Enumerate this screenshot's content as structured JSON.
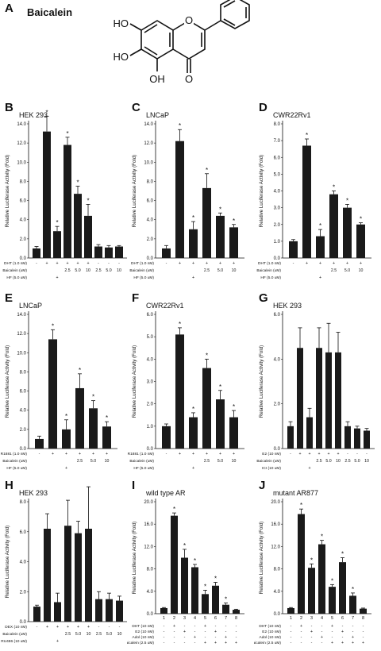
{
  "compound": {
    "panel": "A",
    "name": "Baicalein",
    "oh_labels": [
      "HO",
      "HO",
      "OH",
      "O",
      "O"
    ]
  },
  "chart_data": [
    {
      "panel": "B",
      "title": "HEK 293",
      "type": "bar",
      "ylabel": "Relative Luciferase Activity (Fold)",
      "ylim": [
        0,
        14
      ],
      "yticks": [
        "0.0",
        "2.0",
        "4.0",
        "6.0",
        "8.0",
        "10.0",
        "12.0",
        "14.0"
      ],
      "values": [
        1.0,
        13.2,
        2.8,
        11.8,
        6.7,
        4.4,
        1.2,
        1.1,
        1.2
      ],
      "errors": [
        0.2,
        1.6,
        0.5,
        0.8,
        0.8,
        1.2,
        0.2,
        0.2,
        0.1
      ],
      "stars": [
        false,
        true,
        true,
        true,
        true,
        true,
        false,
        false,
        false
      ],
      "row_labels": [
        "DHT (1.0 nM)",
        "Baicalein (uM)",
        "HF (5.0 uM)"
      ],
      "rows": [
        [
          "-",
          "+",
          "+",
          "+",
          "+",
          "+",
          "-",
          "-",
          "-"
        ],
        [
          "",
          "",
          "",
          "2.5",
          "5.0",
          "10",
          "2.5",
          "5.0",
          "10"
        ],
        [
          "",
          "",
          "+",
          "",
          "",
          "",
          "",
          "",
          ""
        ]
      ]
    },
    {
      "panel": "C",
      "title": "LNCaP",
      "type": "bar",
      "ylabel": "Relative Luciferase Activity (Fold)",
      "ylim": [
        0,
        14
      ],
      "yticks": [
        "0.0",
        "2.0",
        "4.0",
        "6.0",
        "8.0",
        "10.0",
        "12.0",
        "14.0"
      ],
      "values": [
        1.0,
        12.2,
        3.0,
        7.3,
        4.4,
        3.2
      ],
      "errors": [
        0.3,
        1.2,
        0.8,
        1.5,
        0.3,
        0.3
      ],
      "stars": [
        false,
        true,
        true,
        true,
        true,
        true
      ],
      "row_labels": [
        "DHT (1.0 nM)",
        "Baicalein (uM)",
        "HF (5.0 uM)"
      ],
      "rows": [
        [
          "-",
          "+",
          "+",
          "+",
          "+",
          "+"
        ],
        [
          "",
          "",
          "",
          "2.5",
          "5.0",
          "10"
        ],
        [
          "",
          "",
          "+",
          "",
          "",
          ""
        ]
      ]
    },
    {
      "panel": "D",
      "title": "CWR22Rv1",
      "type": "bar",
      "ylabel": "Relative Luciferase Activity (Fold)",
      "ylim": [
        0,
        8
      ],
      "yticks": [
        "0.0",
        "1.0",
        "2.0",
        "3.0",
        "4.0",
        "5.0",
        "6.0",
        "7.0",
        "8.0"
      ],
      "values": [
        1.0,
        6.7,
        1.3,
        3.8,
        3.0,
        2.0
      ],
      "errors": [
        0.1,
        0.4,
        0.4,
        0.2,
        0.2,
        0.1
      ],
      "stars": [
        false,
        true,
        true,
        true,
        true,
        true
      ],
      "row_labels": [
        "DHT (1.0 nM)",
        "Baicalein (uM)",
        "HF (5.0 uM)"
      ],
      "rows": [
        [
          "-",
          "+",
          "+",
          "+",
          "+",
          "+"
        ],
        [
          "",
          "",
          "",
          "2.5",
          "5.0",
          "10"
        ],
        [
          "",
          "",
          "+",
          "",
          "",
          ""
        ]
      ]
    },
    {
      "panel": "E",
      "title": "LNCaP",
      "type": "bar",
      "ylabel": "Relative Luciferase Activity (Fold)",
      "ylim": [
        0,
        14
      ],
      "yticks": [
        "0.0",
        "2.0",
        "4.0",
        "6.0",
        "8.0",
        "10.0",
        "12.0",
        "14.0"
      ],
      "values": [
        1.0,
        11.4,
        2.0,
        6.3,
        4.2,
        2.3
      ],
      "errors": [
        0.3,
        1.0,
        1.0,
        1.5,
        0.8,
        0.5
      ],
      "stars": [
        false,
        true,
        true,
        true,
        true,
        true
      ],
      "row_labels": [
        "R1881 (1.0 nM)",
        "Baicalein (uM)",
        "HF (5.0 uM)"
      ],
      "rows": [
        [
          "-",
          "+",
          "+",
          "+",
          "+",
          "+"
        ],
        [
          "",
          "",
          "",
          "2.5",
          "5.0",
          "10"
        ],
        [
          "",
          "",
          "+",
          "",
          "",
          ""
        ]
      ]
    },
    {
      "panel": "F",
      "title": "CWR22Rv1",
      "type": "bar",
      "ylabel": "Relative Luciferase Activity (Fold)",
      "ylim": [
        0,
        6
      ],
      "yticks": [
        "0.0",
        "1.0",
        "2.0",
        "3.0",
        "4.0",
        "5.0",
        "6.0"
      ],
      "values": [
        1.0,
        5.1,
        1.4,
        3.6,
        2.2,
        1.4
      ],
      "errors": [
        0.1,
        0.3,
        0.2,
        0.4,
        0.4,
        0.3
      ],
      "stars": [
        false,
        true,
        true,
        true,
        true,
        true
      ],
      "row_labels": [
        "R1881 (1.0 nM)",
        "Baicalein (uM)",
        "HF (5.0 uM)"
      ],
      "rows": [
        [
          "-",
          "+",
          "+",
          "+",
          "+",
          "+"
        ],
        [
          "",
          "",
          "",
          "2.5",
          "5.0",
          "10"
        ],
        [
          "",
          "",
          "+",
          "",
          "",
          ""
        ]
      ]
    },
    {
      "panel": "G",
      "title": "HEK 293",
      "type": "bar",
      "ylabel": "Relative Luciferase Activity (Fold)",
      "ylim": [
        0,
        6
      ],
      "yticks": [
        "0.0",
        "2.0",
        "4.0",
        "6.0"
      ],
      "values": [
        1.0,
        4.5,
        1.4,
        4.5,
        4.3,
        4.3,
        1.0,
        0.9,
        0.8
      ],
      "errors": [
        0.2,
        0.9,
        0.4,
        0.9,
        1.3,
        0.9,
        0.2,
        0.1,
        0.1
      ],
      "stars": [
        false,
        false,
        false,
        false,
        false,
        false,
        false,
        false,
        false
      ],
      "row_labels": [
        "E2 (10 nM)",
        "Baicalein (uM)",
        "ICI (10 uM)"
      ],
      "rows": [
        [
          "-",
          "+",
          "+",
          "+",
          "+",
          "+",
          "-",
          "-",
          "-"
        ],
        [
          "",
          "",
          "",
          "2.5",
          "5.0",
          "10",
          "2.5",
          "5.0",
          "10"
        ],
        [
          "",
          "",
          "+",
          "",
          "",
          "",
          "",
          "",
          ""
        ]
      ]
    },
    {
      "panel": "H",
      "title": "HEK 293",
      "type": "bar",
      "ylabel": "Relative Luciferase Activity (Fold)",
      "ylim": [
        0,
        8
      ],
      "yticks": [
        "0.0",
        "2.0",
        "4.0",
        "6.0",
        "8.0"
      ],
      "values": [
        1.0,
        6.2,
        1.3,
        6.4,
        5.9,
        6.2,
        1.5,
        1.5,
        1.4
      ],
      "errors": [
        0.1,
        1.0,
        0.6,
        1.7,
        0.8,
        2.8,
        0.5,
        0.4,
        0.3
      ],
      "stars": [
        false,
        false,
        false,
        false,
        false,
        false,
        false,
        false,
        false
      ],
      "row_labels": [
        "DEX (10 nM)",
        "Baicalein (uM)",
        "RU486 (10 uM)"
      ],
      "rows": [
        [
          "-",
          "+",
          "+",
          "+",
          "+",
          "+",
          "-",
          "-",
          "-"
        ],
        [
          "",
          "",
          "",
          "2.5",
          "5.0",
          "10",
          "2.5",
          "5.0",
          "10"
        ],
        [
          "",
          "",
          "+",
          "",
          "",
          "",
          "",
          "",
          ""
        ]
      ]
    },
    {
      "panel": "I",
      "title": "wild type AR",
      "type": "bar",
      "ylabel": "Relative Luciferase Activity (Fold)",
      "ylim": [
        0,
        20
      ],
      "yticks": [
        "0.0",
        "4.0",
        "8.0",
        "12.0",
        "16.0",
        "20.0"
      ],
      "values": [
        1.0,
        17.5,
        10.0,
        8.3,
        3.5,
        5.0,
        1.6,
        0.7
      ],
      "errors": [
        0.1,
        0.5,
        1.5,
        0.5,
        0.7,
        0.6,
        0.3,
        0.1
      ],
      "stars": [
        false,
        true,
        true,
        true,
        true,
        true,
        true,
        false
      ],
      "tick_numbers": [
        "1",
        "2",
        "3",
        "4",
        "5",
        "6",
        "7",
        "8"
      ],
      "row_labels": [
        "DHT (10 nM)",
        "E2 (10 nM)",
        "Adol (10 nM)",
        "Baicalein (2.5 uM)"
      ],
      "rows": [
        [
          "-",
          "+",
          "-",
          "-",
          "+",
          "-",
          "-",
          "-"
        ],
        [
          "-",
          "-",
          "+",
          "-",
          "-",
          "+",
          "-",
          "-"
        ],
        [
          "-",
          "-",
          "-",
          "+",
          "-",
          "-",
          "+",
          "-"
        ],
        [
          "-",
          "-",
          "-",
          "-",
          "+",
          "+",
          "+",
          "+"
        ]
      ]
    },
    {
      "panel": "J",
      "title": "mutant AR877",
      "type": "bar",
      "ylabel": "Relative Luciferase Activity (Fold)",
      "ylim": [
        0,
        20
      ],
      "yticks": [
        "0.0",
        "4.0",
        "8.0",
        "12.0",
        "16.0",
        "20.0"
      ],
      "values": [
        1.0,
        17.8,
        8.2,
        12.4,
        4.8,
        9.2,
        3.2,
        0.9
      ],
      "errors": [
        0.1,
        0.9,
        0.7,
        0.7,
        0.4,
        0.8,
        0.5,
        0.1
      ],
      "stars": [
        false,
        true,
        true,
        true,
        true,
        true,
        true,
        false
      ],
      "tick_numbers": [
        "1",
        "2",
        "3",
        "4",
        "5",
        "6",
        "7",
        "8"
      ],
      "row_labels": [
        "DHT (10 nM)",
        "E2 (10 nM)",
        "Adol (10 nM)",
        "Baicalein (2.5 uM)"
      ],
      "rows": [
        [
          "-",
          "+",
          "-",
          "-",
          "+",
          "-",
          "-",
          "-"
        ],
        [
          "-",
          "-",
          "+",
          "-",
          "-",
          "+",
          "-",
          "-"
        ],
        [
          "-",
          "-",
          "-",
          "+",
          "-",
          "-",
          "+",
          "-"
        ],
        [
          "-",
          "-",
          "-",
          "-",
          "+",
          "+",
          "+",
          "+"
        ]
      ]
    }
  ]
}
